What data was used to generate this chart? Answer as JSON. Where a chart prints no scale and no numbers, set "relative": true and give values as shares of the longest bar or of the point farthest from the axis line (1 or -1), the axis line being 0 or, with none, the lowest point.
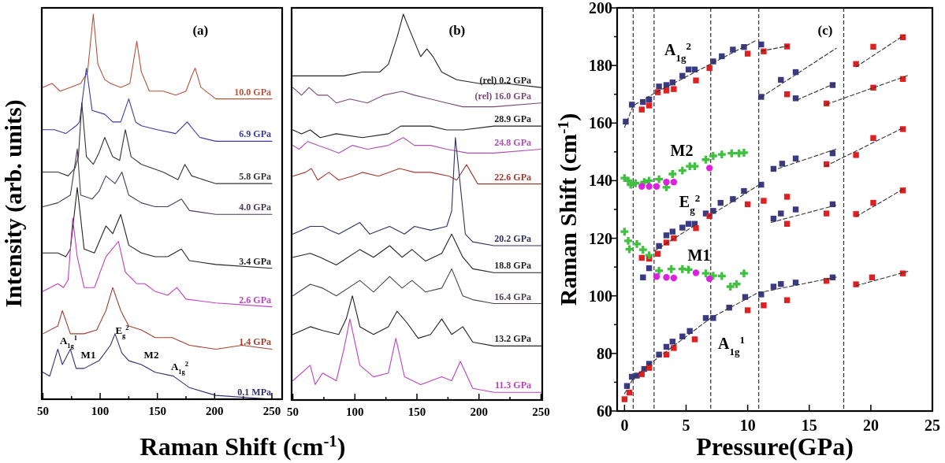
{
  "chart_data": [
    {
      "type": "line",
      "relative": true,
      "title": "(a)",
      "xlabel": "Raman Shift (cm$^{-1}$)",
      "ylabel": "Intensity (arb. units)",
      "xlim": [
        49,
        259
      ],
      "xticks": [
        50,
        {
          "value": 75,
          "label": null
        },
        100,
        {
          "value": 125,
          "label": null
        },
        150,
        {
          "value": 175,
          "label": null
        },
        200,
        {
          "value": 225,
          "label": null
        },
        250
      ],
      "annotations": [
        "A$_{1g}$$^{1}$",
        "M1",
        "E$_{g}$$^{2}$",
        "M2",
        "A$_{1g}$$^{2}$"
      ],
      "series": [
        {
          "name": "10.0 GPa",
          "color": "#b5523b",
          "x": [
            50,
            58,
            65,
            74,
            83,
            89,
            94,
            98,
            104,
            109,
            118,
            126,
            132,
            136,
            143,
            155,
            166,
            175,
            180,
            183,
            188,
            201,
            224,
            250
          ],
          "values": [
            0.81,
            0.82,
            0.8,
            0.81,
            0.82,
            0.85,
            1.0,
            0.87,
            0.83,
            0.82,
            0.81,
            0.82,
            0.93,
            0.85,
            0.8,
            0.8,
            0.79,
            0.8,
            0.84,
            0.86,
            0.81,
            0.78,
            0.78,
            0.78
          ]
        },
        {
          "name": "6.9 GPa",
          "color": "#3a3a9a",
          "x": [
            50,
            60,
            70,
            79,
            82,
            88,
            93,
            104,
            111,
            118,
            125,
            131,
            136,
            150,
            166,
            176,
            187,
            201,
            224,
            250
          ],
          "values": [
            0.7,
            0.7,
            0.69,
            0.71,
            0.72,
            0.86,
            0.75,
            0.74,
            0.72,
            0.72,
            0.78,
            0.72,
            0.71,
            0.7,
            0.69,
            0.72,
            0.68,
            0.67,
            0.67,
            0.67
          ]
        },
        {
          "name": "5.8 GPa",
          "color": "#333333",
          "x": [
            50,
            63,
            72,
            78,
            81,
            84,
            88,
            94,
            99,
            104,
            111,
            117,
            122,
            127,
            136,
            155,
            168,
            174,
            180,
            201,
            250
          ],
          "values": [
            0.59,
            0.59,
            0.58,
            0.6,
            0.63,
            0.77,
            0.63,
            0.61,
            0.64,
            0.68,
            0.63,
            0.62,
            0.7,
            0.63,
            0.61,
            0.59,
            0.57,
            0.61,
            0.58,
            0.56,
            0.56
          ]
        },
        {
          "name": "4.0 GPa",
          "color": "#4a3a5a",
          "x": [
            50,
            63,
            74,
            80,
            83,
            93,
            99,
            105,
            113,
            119,
            125,
            136,
            148,
            159,
            171,
            178,
            201,
            250
          ],
          "values": [
            0.5,
            0.51,
            0.53,
            0.65,
            0.53,
            0.52,
            0.54,
            0.58,
            0.56,
            0.59,
            0.53,
            0.51,
            0.5,
            0.5,
            0.52,
            0.49,
            0.48,
            0.48
          ]
        },
        {
          "name": "3.4 GPa",
          "color": "#222222",
          "x": [
            50,
            63,
            70,
            74,
            80,
            86,
            95,
            105,
            111,
            118,
            125,
            136,
            148,
            159,
            171,
            178,
            201,
            250
          ],
          "values": [
            0.38,
            0.38,
            0.37,
            0.39,
            0.55,
            0.39,
            0.38,
            0.45,
            0.43,
            0.48,
            0.4,
            0.38,
            0.37,
            0.37,
            0.39,
            0.36,
            0.35,
            0.34
          ]
        },
        {
          "name": "2.6 GPa",
          "color": "#c040c0",
          "x": [
            50,
            63,
            68,
            72,
            76,
            80,
            86,
            95,
            105,
            116,
            122,
            132,
            139,
            148,
            159,
            167,
            175,
            201,
            250
          ],
          "values": [
            0.28,
            0.3,
            0.29,
            0.31,
            0.47,
            0.37,
            0.29,
            0.29,
            0.37,
            0.41,
            0.33,
            0.3,
            0.3,
            0.28,
            0.27,
            0.29,
            0.26,
            0.25,
            0.24
          ]
        },
        {
          "name": "1.4 GPa",
          "color": "#a04030",
          "x": [
            50,
            63,
            67,
            74,
            86,
            97,
            105,
            111,
            118,
            125,
            136,
            148,
            163,
            178,
            201,
            224,
            250
          ],
          "values": [
            0.17,
            0.19,
            0.23,
            0.17,
            0.17,
            0.18,
            0.23,
            0.29,
            0.23,
            0.19,
            0.18,
            0.16,
            0.16,
            0.14,
            0.13,
            0.14,
            0.13
          ]
        },
        {
          "name": "0.1 MPa",
          "color": "#303070",
          "x": [
            50,
            56,
            63,
            67,
            74,
            79,
            86,
            99,
            109,
            113,
            119,
            125,
            136,
            148,
            164,
            178,
            201,
            250
          ],
          "values": [
            0.07,
            0.06,
            0.13,
            0.09,
            0.13,
            0.08,
            0.08,
            0.1,
            0.14,
            0.17,
            0.12,
            0.1,
            0.09,
            0.07,
            0.06,
            0.03,
            0.01,
            0.0
          ]
        }
      ]
    },
    {
      "type": "line",
      "relative": true,
      "title": "(b)",
      "xlim": [
        49,
        251
      ],
      "xticks": [
        50,
        {
          "value": 75,
          "label": null
        },
        100,
        {
          "value": 125,
          "label": null
        },
        150,
        {
          "value": 175,
          "label": null
        },
        200,
        {
          "value": 225,
          "label": null
        },
        250
      ],
      "series": [
        {
          "name": "(rel) 0.2 GPa",
          "color": "#222222",
          "x": [
            50,
            64,
            74,
            91,
            106,
            120,
            127,
            134,
            139,
            144,
            153,
            158,
            163,
            170,
            182,
            201,
            223,
            250
          ],
          "values": [
            0.84,
            0.84,
            0.84,
            0.84,
            0.85,
            0.85,
            0.87,
            0.94,
            1.0,
            0.96,
            0.89,
            0.91,
            0.89,
            0.85,
            0.83,
            0.82,
            0.82,
            0.81
          ]
        },
        {
          "name": "(rel) 16.0 GPa",
          "color": "#7a4a78",
          "x": [
            50,
            57,
            63,
            70,
            78,
            85,
            96,
            110,
            123,
            138,
            148,
            161,
            174,
            187,
            212,
            250
          ],
          "values": [
            0.81,
            0.79,
            0.81,
            0.79,
            0.79,
            0.77,
            0.78,
            0.77,
            0.79,
            0.8,
            0.79,
            0.78,
            0.77,
            0.76,
            0.76,
            0.77
          ]
        },
        {
          "name": "28.9 GPa",
          "color": "#222222",
          "x": [
            50,
            57,
            64,
            72,
            85,
            106,
            127,
            137,
            148,
            161,
            174,
            187,
            212,
            250
          ],
          "values": [
            0.7,
            0.69,
            0.7,
            0.68,
            0.69,
            0.68,
            0.69,
            0.71,
            0.71,
            0.71,
            0.7,
            0.7,
            0.71,
            0.71
          ]
        },
        {
          "name": "24.8 GPa",
          "color": "#b050b0",
          "x": [
            50,
            55,
            62,
            70,
            79,
            87,
            98,
            110,
            127,
            139,
            148,
            161,
            174,
            191,
            212,
            250
          ],
          "values": [
            0.66,
            0.65,
            0.67,
            0.66,
            0.65,
            0.64,
            0.66,
            0.65,
            0.66,
            0.68,
            0.66,
            0.66,
            0.65,
            0.64,
            0.64,
            0.65
          ]
        },
        {
          "name": "22.6 GPa",
          "color": "#a03a30",
          "x": [
            50,
            60,
            65,
            70,
            79,
            87,
            98,
            106,
            119,
            136,
            148,
            161,
            176,
            182,
            190,
            199,
            223,
            250
          ],
          "values": [
            0.58,
            0.59,
            0.6,
            0.57,
            0.59,
            0.57,
            0.58,
            0.59,
            0.58,
            0.6,
            0.59,
            0.59,
            0.58,
            0.57,
            0.61,
            0.56,
            0.56,
            0.56
          ]
        },
        {
          "name": "20.2 GPa",
          "color": "#303060",
          "x": [
            50,
            57,
            64,
            74,
            80,
            87,
            104,
            112,
            128,
            140,
            148,
            161,
            174,
            178,
            181,
            189,
            195,
            212,
            250
          ],
          "values": [
            0.43,
            0.44,
            0.45,
            0.45,
            0.44,
            0.43,
            0.46,
            0.43,
            0.45,
            0.43,
            0.45,
            0.44,
            0.45,
            0.49,
            0.68,
            0.43,
            0.41,
            0.4,
            0.4
          ]
        },
        {
          "name": "18.8 GPa",
          "color": "#222222",
          "x": [
            50,
            64,
            72,
            85,
            104,
            115,
            128,
            138,
            146,
            157,
            170,
            178,
            187,
            195,
            212,
            250
          ],
          "values": [
            0.37,
            0.38,
            0.37,
            0.35,
            0.39,
            0.37,
            0.4,
            0.37,
            0.39,
            0.36,
            0.38,
            0.43,
            0.37,
            0.34,
            0.33,
            0.33
          ]
        },
        {
          "name": "16.4 GPa",
          "color": "#504050",
          "x": [
            50,
            64,
            74,
            85,
            104,
            115,
            128,
            138,
            146,
            157,
            170,
            178,
            187,
            195,
            212,
            250
          ],
          "values": [
            0.27,
            0.3,
            0.29,
            0.27,
            0.31,
            0.28,
            0.32,
            0.29,
            0.31,
            0.28,
            0.29,
            0.34,
            0.27,
            0.26,
            0.25,
            0.25
          ]
        },
        {
          "name": "13.2 GPa",
          "color": "#222222",
          "x": [
            50,
            64,
            74,
            87,
            93,
            98,
            104,
            115,
            127,
            134,
            142,
            151,
            161,
            170,
            178,
            187,
            195,
            212,
            250
          ],
          "values": [
            0.17,
            0.19,
            0.18,
            0.17,
            0.21,
            0.27,
            0.19,
            0.17,
            0.19,
            0.23,
            0.2,
            0.16,
            0.17,
            0.21,
            0.17,
            0.19,
            0.15,
            0.14,
            0.14
          ]
        },
        {
          "name": "11.3 GPa",
          "color": "#c040c0",
          "x": [
            50,
            64,
            68,
            74,
            85,
            91,
            96,
            104,
            115,
            127,
            133,
            140,
            153,
            170,
            178,
            185,
            195,
            212,
            250
          ],
          "values": [
            0.05,
            0.09,
            0.04,
            0.07,
            0.05,
            0.13,
            0.21,
            0.09,
            0.06,
            0.07,
            0.16,
            0.06,
            0.04,
            0.06,
            0.05,
            0.1,
            0.03,
            0.02,
            0.02
          ]
        }
      ]
    },
    {
      "type": "scatter",
      "title": "(c)",
      "xlabel": "Pressure(GPa)",
      "ylabel": "Raman Shift (cm$^{-1}$)",
      "xlim": [
        -0.6,
        25
      ],
      "xticks": [
        0,
        5,
        10,
        15,
        20,
        25
      ],
      "ylim": [
        60,
        200
      ],
      "yticks": [
        60,
        {
          "value": 70,
          "label": null
        },
        80,
        {
          "value": 90,
          "label": null
        },
        100,
        {
          "value": 110,
          "label": null
        },
        120,
        {
          "value": 130,
          "label": null
        },
        140,
        {
          "value": 150,
          "label": null
        },
        160,
        {
          "value": 170,
          "label": null
        },
        180,
        {
          "value": 190,
          "label": null
        },
        200
      ],
      "ref_lines": [
        {
          "axis": "x",
          "value": 0.7,
          "color": "#333333",
          "line_style": "dashed"
        },
        {
          "axis": "x",
          "value": 2.4,
          "color": "#333333",
          "line_style": "dashed"
        },
        {
          "axis": "x",
          "value": 7.0,
          "color": "#333333",
          "line_style": "dashed"
        },
        {
          "axis": "x",
          "value": 10.9,
          "color": "#333333",
          "line_style": "dashed"
        },
        {
          "axis": "x",
          "value": 17.8,
          "color": "#333333",
          "line_style": "dashed"
        }
      ],
      "annotations": [
        "A$_{1g}$$^{2}$",
        "M2",
        "E$_{g}$$^{2}$",
        "M1",
        "A$_{1g}$$^{1}$"
      ],
      "series": [
        {
          "color": "#3a3a80",
          "marker": "square",
          "x": [
            0.2,
            0.6,
            1.0,
            1.6,
            2.0,
            2.8,
            3.4,
            3.9,
            4.7,
            5.3,
            6.6,
            7.2,
            8.5,
            9.8,
            11.1,
            12.1,
            12.7,
            13.9,
            16.9,
            1.5,
            2.0,
            2.8,
            3.4,
            3.9,
            4.7,
            5.2,
            5.7,
            6.6,
            7.2,
            7.8,
            8.8,
            9.7,
            11.1,
            12.1,
            12.7,
            13.9,
            16.9,
            12.1,
            12.8,
            13.9,
            16.9,
            0.1,
            0.6,
            1.5,
            2.0,
            2.8,
            3.4,
            3.9,
            4.7,
            5.2,
            5.7,
            7.2,
            7.9,
            8.8,
            9.7,
            11.1,
            11.1,
            12.7,
            13.9,
            13.9,
            16.9
          ],
          "values": [
            68.7,
            71.9,
            72.3,
            74.6,
            76.4,
            79.6,
            82.3,
            84.1,
            85.9,
            87.8,
            92.3,
            92.3,
            95.9,
            99.6,
            100.5,
            103.2,
            104.1,
            104.6,
            106.4,
            106.4,
            109.6,
            117.3,
            121.0,
            122.3,
            123.7,
            125.0,
            125.0,
            128.6,
            129.5,
            132.3,
            133.6,
            136.4,
            138.6,
            126.8,
            128.6,
            130.0,
            131.8,
            144.1,
            145.9,
            147.7,
            149.5,
            160.5,
            166.4,
            167.3,
            168.2,
            172.7,
            173.2,
            174.1,
            176.4,
            178.6,
            178.6,
            181.4,
            183.2,
            185.5,
            186.4,
            187.3,
            169.1,
            175.0,
            177.7,
            168.6,
            173.2
          ]
        },
        {
          "color": "#e02020",
          "marker": "square",
          "x": [
            0.0,
            0.4,
            1.4,
            2.0,
            3.4,
            4.0,
            5.7,
            10.0,
            11.3,
            13.2,
            16.4,
            18.8,
            20.1,
            22.6,
            1.4,
            2.0,
            2.7,
            3.4,
            4.0,
            5.8,
            13.2,
            6.9,
            10.0,
            11.3,
            13.2,
            16.4,
            18.8,
            20.2,
            22.6,
            16.4,
            18.8,
            20.2,
            22.6,
            1.4,
            2.0,
            2.7,
            3.4,
            4.0,
            5.8,
            6.9,
            10.0,
            11.3,
            13.2,
            13.2,
            16.4,
            18.8,
            20.2,
            22.6,
            20.2,
            22.6
          ],
          "values": [
            64.1,
            66.4,
            72.8,
            75.0,
            79.6,
            81.9,
            84.9,
            95.0,
            96.7,
            98.5,
            105.2,
            104.0,
            106.4,
            107.8,
            113.2,
            112.9,
            114.6,
            118.5,
            120.0,
            123.5,
            125.0,
            127.7,
            131.8,
            133.0,
            134.4,
            128.6,
            128.4,
            132.3,
            136.6,
            145.7,
            148.9,
            154.8,
            157.9,
            164.7,
            166.1,
            170.7,
            171.3,
            171.8,
            174.8,
            179.1,
            184.1,
            184.9,
            186.6,
            170.0,
            166.8,
            180.5,
            186.5,
            189.8,
            172.3,
            175.3
          ]
        },
        {
          "color": "#40c040",
          "marker": "cross",
          "x": [
            0,
            0.3,
            0.5,
            0.9,
            1.6,
            2.0,
            2.8,
            3.4,
            3.9,
            4.7,
            5.3,
            5.7,
            6.6,
            7.2,
            7.9,
            8.7,
            9.3,
            9.7,
            0,
            0.3,
            0.4,
            1.0,
            1.5,
            2.0,
            2.8,
            3.8,
            4.7,
            5.2,
            6.6,
            7.2,
            7.9,
            8.6,
            9.1,
            9.7
          ],
          "values": [
            140.9,
            140.0,
            138.6,
            139.1,
            139.5,
            140.0,
            140.5,
            137.7,
            142.3,
            143.5,
            145.0,
            145.0,
            147.3,
            148.6,
            149.1,
            149.5,
            149.5,
            149.7,
            122.3,
            119.1,
            116.2,
            118.0,
            116.0,
            114.1,
            108.7,
            109.3,
            109.3,
            109.1,
            107.8,
            107.0,
            106.9,
            103.2,
            104.1,
            107.8
          ]
        },
        {
          "color": "#e020e0",
          "marker": "circle",
          "x": [
            1.4,
            2.0,
            2.6,
            3.4,
            4.0,
            6.9,
            2.6,
            3.4,
            4.0,
            5.8,
            6.9
          ],
          "values": [
            138.0,
            138.0,
            138.0,
            139.5,
            139.5,
            144.4,
            106.7,
            106.4,
            106.2,
            108.0,
            105.9
          ]
        },
        {
          "type": "line",
          "color": "#333333",
          "line_style": "dashed",
          "x": [
            0,
            0.7,
            2.4,
            7,
            10.8,
            17.2
          ],
          "values": [
            66,
            71.3,
            77.5,
            92.3,
            101,
            106.5
          ]
        },
        {
          "type": "line",
          "color": "#333333",
          "line_style": "dashed",
          "x": [
            18.8,
            23
          ],
          "values": [
            103.5,
            108.5
          ]
        },
        {
          "type": "line",
          "color": "#333333",
          "line_style": "dashed",
          "x": [
            2.4,
            5.9
          ],
          "values": [
            115.5,
            125
          ]
        },
        {
          "type": "line",
          "color": "#333333",
          "line_style": "dashed",
          "x": [
            6.8,
            11.1
          ],
          "values": [
            127.5,
            139
          ]
        },
        {
          "type": "line",
          "color": "#333333",
          "line_style": "dashed",
          "x": [
            11.9,
            17.2
          ],
          "values": [
            125.5,
            131.5
          ]
        },
        {
          "type": "line",
          "color": "#333333",
          "line_style": "dashed",
          "x": [
            18.8,
            22.8
          ],
          "values": [
            127.5,
            137.5
          ]
        },
        {
          "type": "line",
          "color": "#333333",
          "line_style": "dashed",
          "x": [
            12,
            17.2
          ],
          "values": [
            143.5,
            151
          ]
        },
        {
          "type": "line",
          "color": "#333333",
          "line_style": "dashed",
          "x": [
            16.3,
            22.7
          ],
          "values": [
            145,
            158.5
          ]
        },
        {
          "type": "line",
          "color": "#333333",
          "line_style": "dashed",
          "x": [
            0,
            0.7,
            2.4,
            7,
            10.6
          ],
          "values": [
            158.5,
            166,
            170.3,
            180.5,
            188.5
          ]
        },
        {
          "type": "line",
          "color": "#333333",
          "line_style": "dashed",
          "x": [
            11.1,
            17.2
          ],
          "values": [
            169,
            186
          ]
        },
        {
          "type": "line",
          "color": "#333333",
          "line_style": "dashed",
          "x": [
            11.1,
            13.3
          ],
          "values": [
            185,
            186.8
          ]
        },
        {
          "type": "line",
          "color": "#333333",
          "line_style": "dashed",
          "x": [
            14,
            17.2
          ],
          "values": [
            168,
            174
          ]
        },
        {
          "type": "line",
          "color": "#333333",
          "line_style": "dashed",
          "x": [
            16.4,
            23
          ],
          "values": [
            166.5,
            176.5
          ]
        },
        {
          "type": "line",
          "color": "#333333",
          "line_style": "dashed",
          "x": [
            18.8,
            22.7
          ],
          "values": [
            179.5,
            190.5
          ]
        }
      ]
    }
  ]
}
